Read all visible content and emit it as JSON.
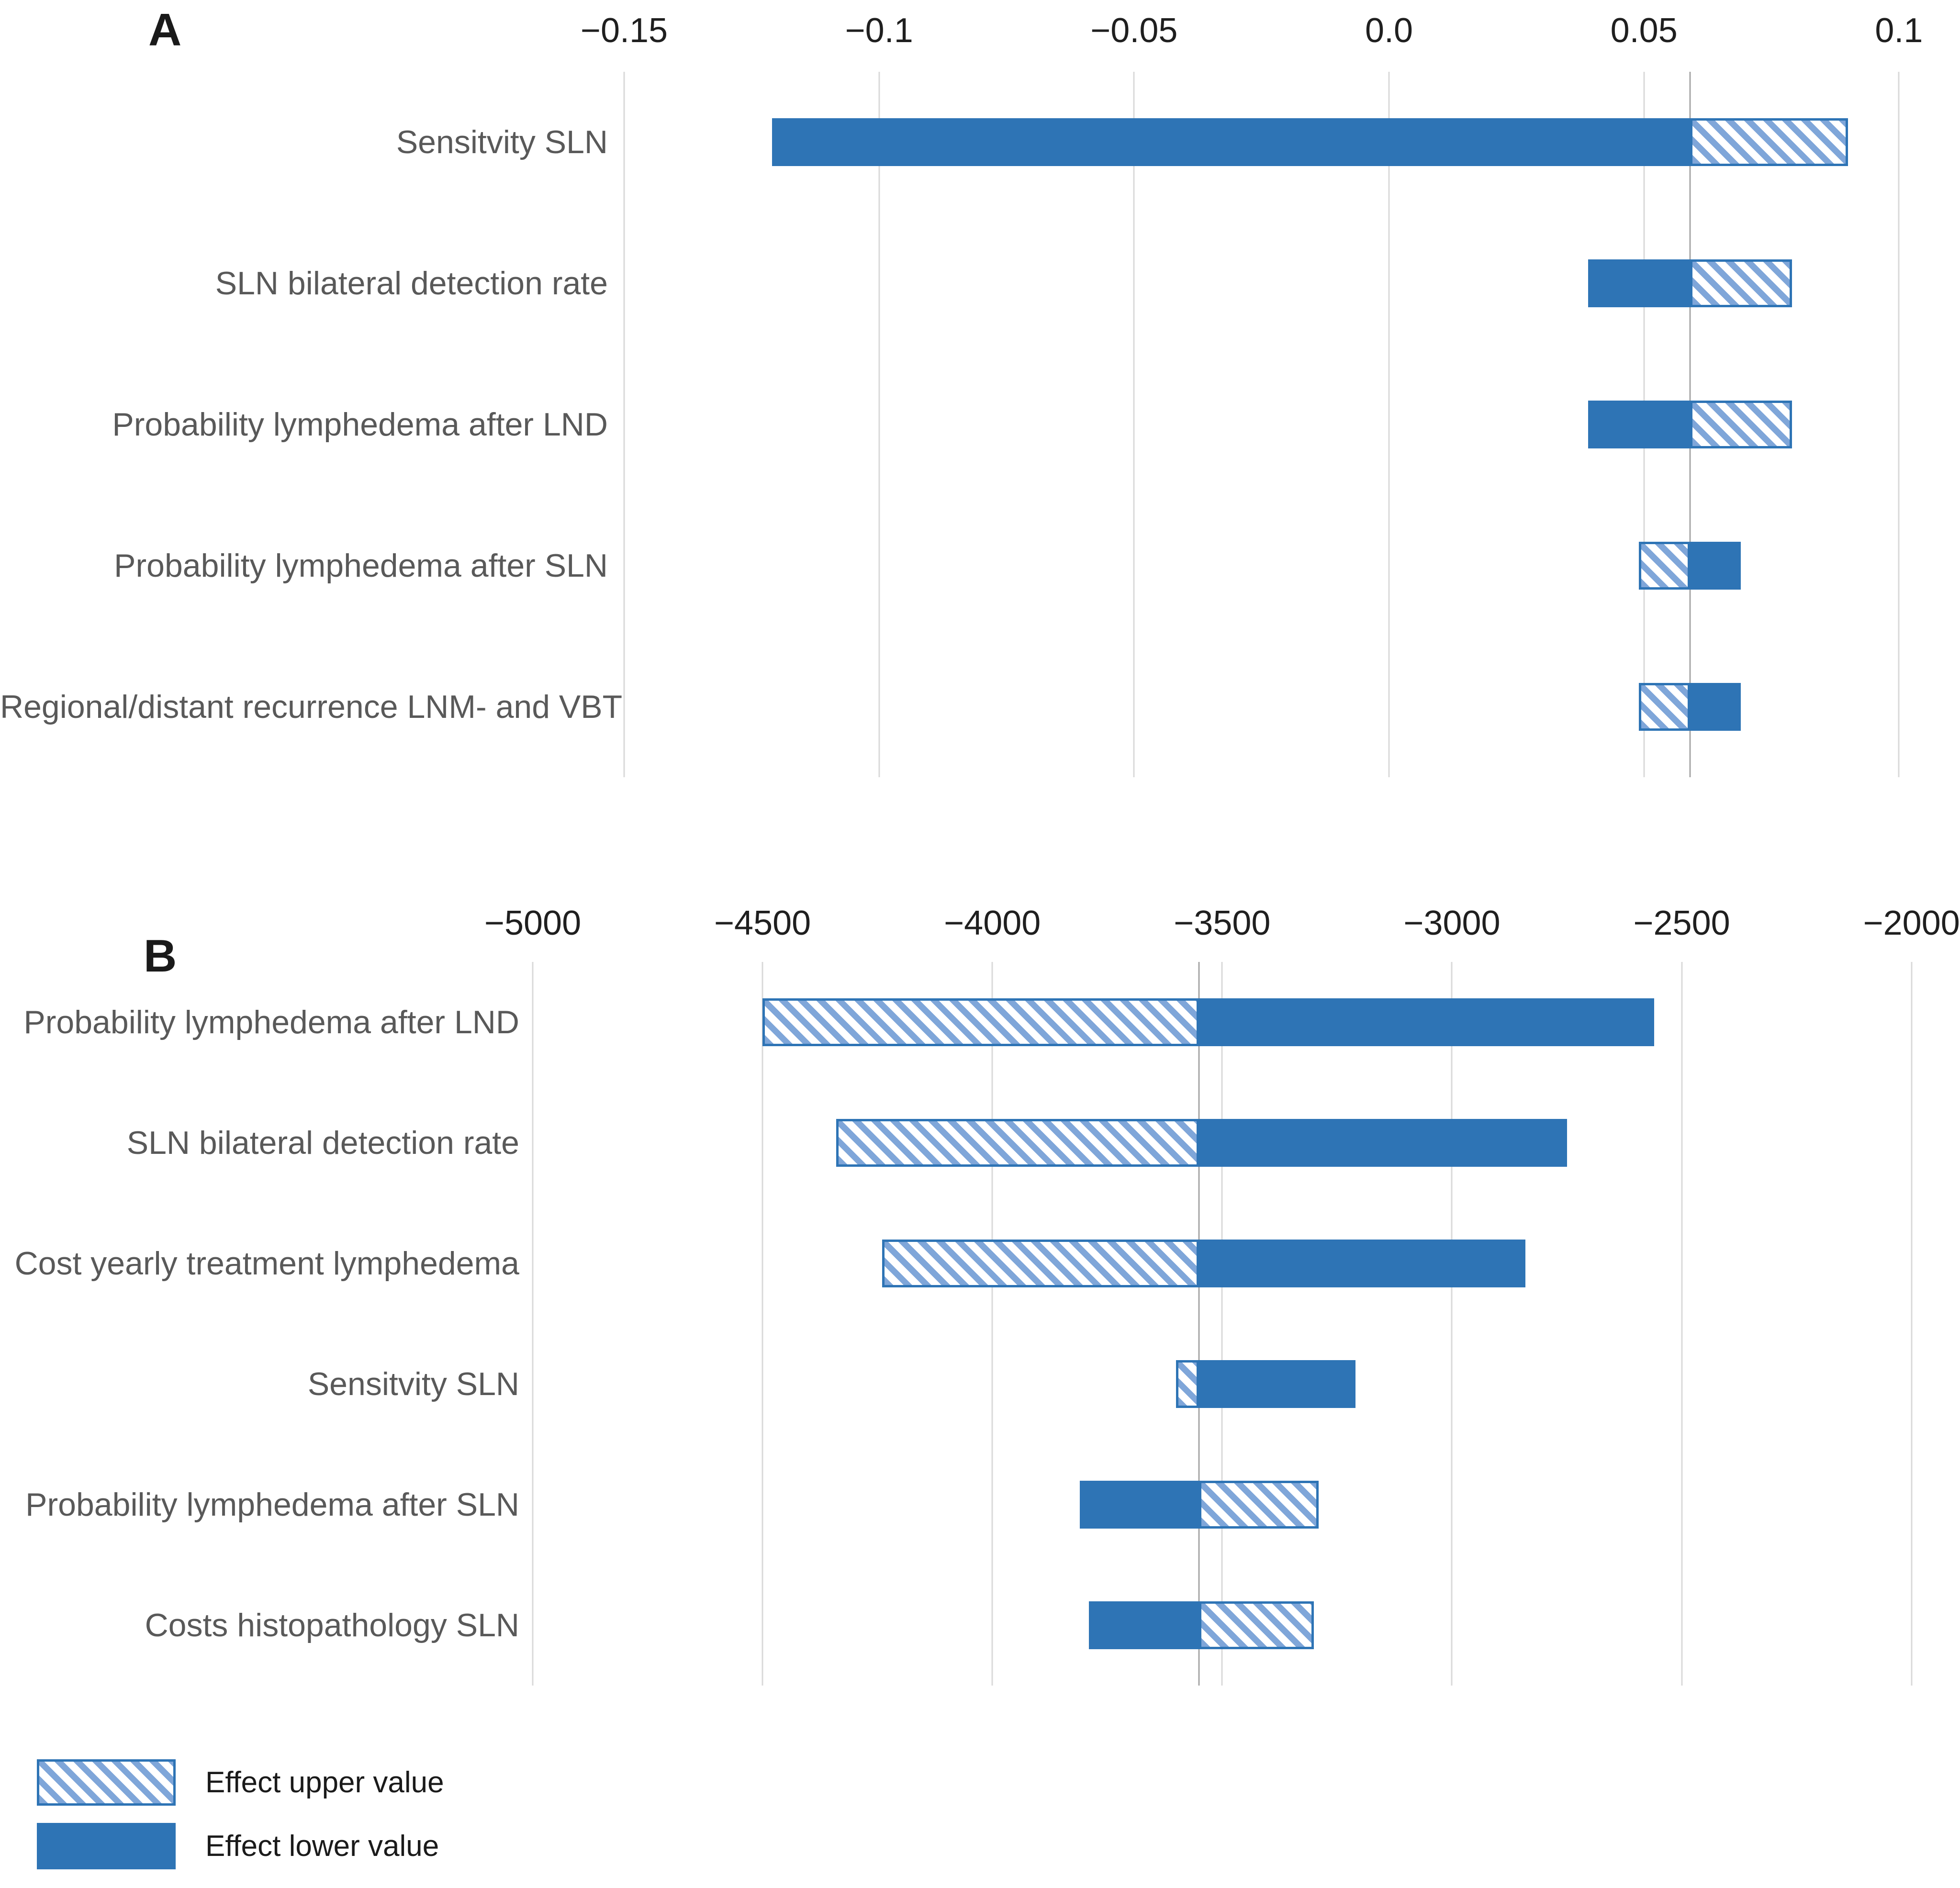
{
  "colors": {
    "solid_fill": "#2e74b5",
    "hatch_stripe": "#7fa6d9",
    "hatch_border": "#2e74b5",
    "gridline": "#d9d9d9",
    "base_line": "#a6a6a6",
    "tick_text": "#1f1f1f",
    "category_text": "#595959",
    "panel_letter_text": "#1a1a1a"
  },
  "chart_data": [
    {
      "type": "bar",
      "subtype": "tornado",
      "panel_label": "A",
      "orientation": "horizontal",
      "axis": {
        "position": "top",
        "min": -0.15,
        "max": 0.104,
        "ticks": [
          -0.15,
          -0.1,
          -0.05,
          0,
          0.05,
          0.1
        ],
        "tick_labels": [
          "−0.15",
          "−0.1",
          "−0.05",
          "0.0",
          "0.05",
          "0.1"
        ],
        "grid": true
      },
      "base_value": 0.059,
      "categories": [
        "Sensitvity SLN",
        "SLN bilateral detection rate",
        "Probability lymphedema after LND",
        "Probability lymphedema after SLN",
        "Regional/distant recurrence LNM- and VBT"
      ],
      "series": [
        {
          "name": "Effect lower value",
          "style": "solid",
          "values": [
            -0.121,
            0.039,
            0.039,
            0.069,
            0.069
          ]
        },
        {
          "name": "Effect upper value",
          "style": "hatched",
          "values": [
            0.09,
            0.079,
            0.079,
            0.049,
            0.049
          ]
        }
      ]
    },
    {
      "type": "bar",
      "subtype": "tornado",
      "panel_label": "B",
      "orientation": "horizontal",
      "axis": {
        "position": "top",
        "min": -5000,
        "max": -1957,
        "ticks": [
          -5000,
          -4500,
          -4000,
          -3500,
          -3000,
          -2500,
          -2000
        ],
        "tick_labels": [
          "−5000",
          "−4500",
          "−4000",
          "−3500",
          "−3000",
          "−2500",
          "−2000"
        ],
        "grid": true
      },
      "base_value": -3550,
      "categories": [
        "Probability lymphedema after LND",
        "SLN bilateral detection rate",
        "Cost yearly treatment lymphedema",
        "Sensitvity SLN",
        "Probability lymphedema after SLN",
        "Costs histopathology SLN"
      ],
      "series": [
        {
          "name": "Effect lower value",
          "style": "solid",
          "values": [
            -2560,
            -2750,
            -2840,
            -3210,
            -3810,
            -3790
          ]
        },
        {
          "name": "Effect upper value",
          "style": "hatched",
          "values": [
            -4500,
            -4340,
            -4240,
            -3600,
            -3290,
            -3300
          ]
        }
      ]
    }
  ],
  "legend": {
    "items": [
      {
        "label": "Effect upper value",
        "style": "hatched"
      },
      {
        "label": "Effect lower value",
        "style": "solid"
      }
    ]
  }
}
